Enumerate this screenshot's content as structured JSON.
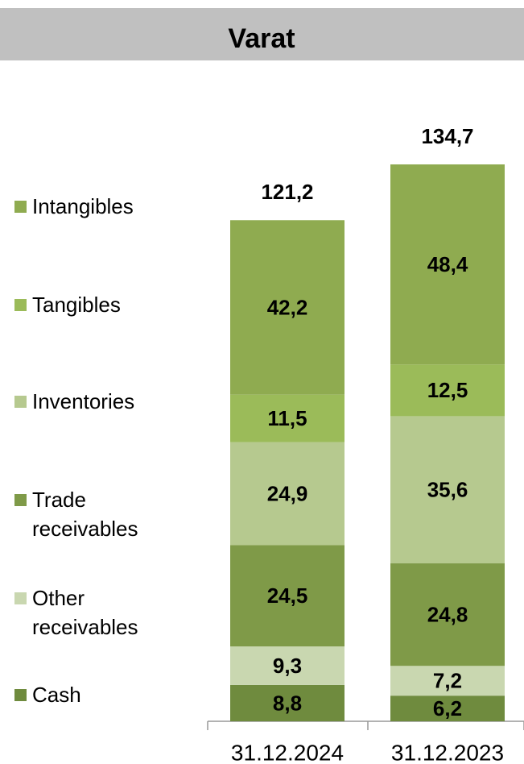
{
  "chart_data": {
    "type": "stacked_bar",
    "title": "Varat",
    "categories": [
      "31.12.2024",
      "31.12.2023"
    ],
    "series": [
      {
        "name": "Cash",
        "color": "#6f8b3e",
        "values": [
          8.8,
          6.2
        ],
        "value_labels": [
          "8,8",
          "6,2"
        ]
      },
      {
        "name": "Other receivables",
        "color": "#c9d7b0",
        "values": [
          9.3,
          7.2
        ],
        "value_labels": [
          "9,3",
          "7,2"
        ]
      },
      {
        "name": "Trade receivables",
        "color": "#7f9a48",
        "values": [
          24.5,
          24.8
        ],
        "value_labels": [
          "24,5",
          "24,8"
        ]
      },
      {
        "name": "Inventories",
        "color": "#b6c98f",
        "values": [
          24.9,
          35.6
        ],
        "value_labels": [
          "24,9",
          "35,6"
        ]
      },
      {
        "name": "Tangibles",
        "color": "#9bbb59",
        "values": [
          11.5,
          12.5
        ],
        "value_labels": [
          "11,5",
          "12,5"
        ]
      },
      {
        "name": "Intangibles",
        "color": "#8fab50",
        "values": [
          42.2,
          48.4
        ],
        "value_labels": [
          "42,2",
          "48,4"
        ]
      }
    ],
    "totals": [
      121.2,
      134.7
    ],
    "total_labels": [
      "121,2",
      "134,7"
    ]
  }
}
